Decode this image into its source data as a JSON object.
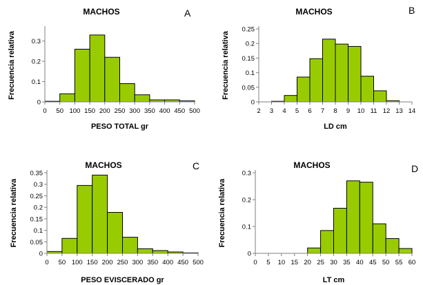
{
  "chart_data": [
    {
      "panel": "A",
      "type": "bar",
      "title": "MACHOS",
      "xlabel": "PESO TOTAL gr",
      "ylabel": "Frecuencia relativa",
      "x_ticks": [
        "0",
        "50",
        "100",
        "150",
        "200",
        "250",
        "300",
        "350",
        "400",
        "450",
        "500"
      ],
      "y_ticks": [
        "0",
        "0.1",
        "0.2",
        "0.3"
      ],
      "ylim": [
        0,
        0.36
      ],
      "bin_start": 0,
      "bin_width": 50,
      "values": [
        0.003,
        0.04,
        0.26,
        0.33,
        0.22,
        0.09,
        0.035,
        0.01,
        0.01,
        0.005
      ],
      "bar_color": "#99cc00",
      "grid": false
    },
    {
      "panel": "B",
      "type": "bar",
      "title": "MACHOS",
      "xlabel": "LD cm",
      "ylabel": "Frecuencia relativa",
      "x_ticks": [
        "2",
        "3",
        "4",
        "5",
        "6",
        "7",
        "8",
        "9",
        "10",
        "11",
        "12",
        "13",
        "14"
      ],
      "y_ticks": [
        "0",
        "0.05",
        "0.1",
        "0.15",
        "0.2",
        "0.25"
      ],
      "ylim": [
        0,
        0.25
      ],
      "bin_start": 2,
      "bin_width": 1,
      "values": [
        0.0,
        0.002,
        0.022,
        0.085,
        0.148,
        0.215,
        0.198,
        0.19,
        0.088,
        0.038,
        0.004,
        0.0
      ],
      "bar_color": "#99cc00",
      "grid": false
    },
    {
      "panel": "C",
      "type": "bar",
      "title": "MACHOS",
      "xlabel": "PESO EVISCERADO  gr",
      "ylabel": "Frecuencia relativa",
      "x_ticks": [
        "0",
        "50",
        "100",
        "150",
        "200",
        "250",
        "300",
        "350",
        "400",
        "450",
        "500"
      ],
      "y_ticks": [
        "0",
        "0.05",
        "0.1",
        "0.15",
        "0.2",
        "0.25",
        "0.3",
        "0.35"
      ],
      "ylim": [
        0,
        0.35
      ],
      "bin_start": 0,
      "bin_width": 50,
      "values": [
        0.008,
        0.065,
        0.295,
        0.34,
        0.178,
        0.07,
        0.02,
        0.012,
        0.006,
        0.002
      ],
      "bar_color": "#99cc00",
      "grid": false
    },
    {
      "panel": "D",
      "type": "bar",
      "title": "MACHOS",
      "xlabel": "LT cm",
      "ylabel": "Frecuencia relativa",
      "x_ticks": [
        "0",
        "5",
        "10",
        "15",
        "20",
        "25",
        "30",
        "35",
        "40",
        "45",
        "50",
        "55",
        "60"
      ],
      "y_ticks": [
        "0",
        "0.1",
        "0.2",
        "0.3"
      ],
      "ylim": [
        0,
        0.3
      ],
      "bin_start": 0,
      "bin_width": 5,
      "values": [
        0,
        0,
        0,
        0,
        0.02,
        0.085,
        0.168,
        0.27,
        0.265,
        0.11,
        0.055,
        0.018
      ],
      "bar_color": "#99cc00",
      "grid": false
    }
  ],
  "panel_letters": [
    "A",
    "B",
    "C",
    "D"
  ]
}
